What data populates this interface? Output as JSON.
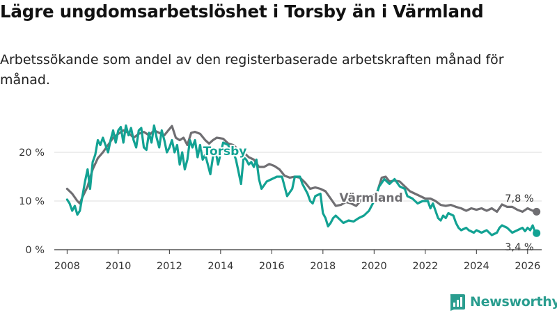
{
  "header": {
    "title": "Lägre ungdomsarbetslöshet i Torsby än i Värmland",
    "subtitle": "Arbetssökande som andel av den registerbaserade arbetskraften månad för månad."
  },
  "brand": {
    "name": "Newsworthy",
    "icon": "newsworthy-logo-icon",
    "color": "#2a9d8f"
  },
  "colors": {
    "torsby": "#12a293",
    "varmland": "#6f6e72",
    "grid": "#dcdcdc",
    "baseline": "#333333"
  },
  "chart_data": {
    "type": "line",
    "title": "Lägre ungdomsarbetslöshet i Torsby än i Värmland",
    "xlabel": "",
    "ylabel": "",
    "xlim": [
      2007.5,
      2026.55
    ],
    "ylim": [
      0,
      27
    ],
    "y_ticks": [
      {
        "value": 0,
        "label": "0 %"
      },
      {
        "value": 10,
        "label": "10 %"
      },
      {
        "value": 20,
        "label": "20 %"
      }
    ],
    "x_ticks": [
      {
        "value": 2008,
        "label": "2008"
      },
      {
        "value": 2010,
        "label": "2010"
      },
      {
        "value": 2012,
        "label": "2012"
      },
      {
        "value": 2014,
        "label": "2014"
      },
      {
        "value": 2016,
        "label": "2016"
      },
      {
        "value": 2018,
        "label": "2018"
      },
      {
        "value": 2020,
        "label": "2020"
      },
      {
        "value": 2022,
        "label": "2022"
      },
      {
        "value": 2024,
        "label": "2024"
      },
      {
        "value": 2026,
        "label": "2026"
      }
    ],
    "series": [
      {
        "name": "Värmland",
        "label": "Värmland",
        "end_label": "7,8 %",
        "color": "#6f6e72",
        "points": [
          [
            2008.0,
            12.5
          ],
          [
            2008.2,
            11.5
          ],
          [
            2008.4,
            10.0
          ],
          [
            2008.5,
            9.5
          ],
          [
            2008.6,
            10.8
          ],
          [
            2008.8,
            13.0
          ],
          [
            2009.0,
            16.5
          ],
          [
            2009.2,
            18.8
          ],
          [
            2009.4,
            20.0
          ],
          [
            2009.6,
            21.5
          ],
          [
            2009.8,
            23.0
          ],
          [
            2010.0,
            23.8
          ],
          [
            2010.2,
            24.5
          ],
          [
            2010.4,
            24.0
          ],
          [
            2010.6,
            23.0
          ],
          [
            2010.8,
            23.8
          ],
          [
            2011.0,
            24.2
          ],
          [
            2011.2,
            23.5
          ],
          [
            2011.4,
            24.5
          ],
          [
            2011.6,
            24.0
          ],
          [
            2011.8,
            23.5
          ],
          [
            2012.0,
            24.8
          ],
          [
            2012.1,
            25.4
          ],
          [
            2012.25,
            23.0
          ],
          [
            2012.4,
            22.5
          ],
          [
            2012.55,
            23.0
          ],
          [
            2012.7,
            21.5
          ],
          [
            2012.85,
            24.0
          ],
          [
            2013.0,
            24.2
          ],
          [
            2013.2,
            23.8
          ],
          [
            2013.4,
            22.5
          ],
          [
            2013.55,
            21.8
          ],
          [
            2013.7,
            22.5
          ],
          [
            2013.85,
            23.0
          ],
          [
            2014.1,
            22.8
          ],
          [
            2014.3,
            21.8
          ],
          [
            2014.5,
            21.5
          ],
          [
            2014.7,
            20.5
          ],
          [
            2014.9,
            20.0
          ],
          [
            2015.1,
            19.0
          ],
          [
            2015.3,
            18.5
          ],
          [
            2015.5,
            17.0
          ],
          [
            2015.7,
            17.0
          ],
          [
            2015.9,
            17.6
          ],
          [
            2016.1,
            17.2
          ],
          [
            2016.3,
            16.5
          ],
          [
            2016.5,
            15.2
          ],
          [
            2016.7,
            14.8
          ],
          [
            2016.9,
            15.0
          ],
          [
            2017.1,
            14.8
          ],
          [
            2017.3,
            13.8
          ],
          [
            2017.5,
            12.5
          ],
          [
            2017.7,
            12.8
          ],
          [
            2017.9,
            12.5
          ],
          [
            2018.1,
            12.0
          ],
          [
            2018.3,
            10.5
          ],
          [
            2018.5,
            9.0
          ],
          [
            2018.7,
            9.2
          ],
          [
            2018.9,
            9.8
          ],
          [
            2019.1,
            9.5
          ],
          [
            2019.3,
            9.0
          ],
          [
            2019.5,
            10.2
          ],
          [
            2019.7,
            10.8
          ],
          [
            2019.9,
            11.0
          ],
          [
            2020.1,
            11.5
          ],
          [
            2020.3,
            14.8
          ],
          [
            2020.45,
            15.0
          ],
          [
            2020.6,
            14.0
          ],
          [
            2020.8,
            14.2
          ],
          [
            2021.0,
            14.0
          ],
          [
            2021.2,
            13.0
          ],
          [
            2021.4,
            12.0
          ],
          [
            2021.6,
            11.5
          ],
          [
            2021.8,
            11.0
          ],
          [
            2022.0,
            10.5
          ],
          [
            2022.2,
            10.5
          ],
          [
            2022.4,
            10.0
          ],
          [
            2022.6,
            9.2
          ],
          [
            2022.8,
            9.0
          ],
          [
            2023.0,
            9.2
          ],
          [
            2023.2,
            8.8
          ],
          [
            2023.4,
            8.5
          ],
          [
            2023.6,
            8.0
          ],
          [
            2023.8,
            8.5
          ],
          [
            2024.0,
            8.2
          ],
          [
            2024.2,
            8.5
          ],
          [
            2024.4,
            8.0
          ],
          [
            2024.6,
            8.5
          ],
          [
            2024.8,
            7.8
          ],
          [
            2025.0,
            9.3
          ],
          [
            2025.2,
            8.8
          ],
          [
            2025.4,
            8.8
          ],
          [
            2025.6,
            8.2
          ],
          [
            2025.8,
            7.8
          ],
          [
            2026.0,
            8.5
          ],
          [
            2026.2,
            8.0
          ],
          [
            2026.35,
            7.8
          ]
        ]
      },
      {
        "name": "Torsby",
        "label": "Torsby",
        "end_label": "3,4 %",
        "color": "#12a293",
        "points": [
          [
            2008.0,
            10.3
          ],
          [
            2008.1,
            9.5
          ],
          [
            2008.2,
            8.0
          ],
          [
            2008.3,
            9.0
          ],
          [
            2008.4,
            7.2
          ],
          [
            2008.5,
            8.0
          ],
          [
            2008.6,
            11.0
          ],
          [
            2008.7,
            14.0
          ],
          [
            2008.8,
            16.5
          ],
          [
            2008.9,
            12.5
          ],
          [
            2009.0,
            18.0
          ],
          [
            2009.1,
            19.5
          ],
          [
            2009.2,
            22.5
          ],
          [
            2009.3,
            21.5
          ],
          [
            2009.4,
            23.0
          ],
          [
            2009.5,
            21.5
          ],
          [
            2009.6,
            20.0
          ],
          [
            2009.7,
            22.5
          ],
          [
            2009.8,
            24.5
          ],
          [
            2009.9,
            22.0
          ],
          [
            2010.0,
            24.5
          ],
          [
            2010.1,
            25.2
          ],
          [
            2010.2,
            22.0
          ],
          [
            2010.3,
            25.5
          ],
          [
            2010.4,
            23.5
          ],
          [
            2010.5,
            25.0
          ],
          [
            2010.6,
            22.5
          ],
          [
            2010.7,
            21.0
          ],
          [
            2010.8,
            24.5
          ],
          [
            2010.9,
            25.0
          ],
          [
            2011.0,
            21.0
          ],
          [
            2011.1,
            20.5
          ],
          [
            2011.2,
            24.0
          ],
          [
            2011.3,
            22.0
          ],
          [
            2011.4,
            25.5
          ],
          [
            2011.5,
            23.0
          ],
          [
            2011.6,
            21.0
          ],
          [
            2011.7,
            24.5
          ],
          [
            2011.8,
            22.5
          ],
          [
            2011.9,
            20.0
          ],
          [
            2012.0,
            21.0
          ],
          [
            2012.1,
            22.5
          ],
          [
            2012.2,
            20.0
          ],
          [
            2012.3,
            21.5
          ],
          [
            2012.4,
            17.5
          ],
          [
            2012.5,
            20.0
          ],
          [
            2012.6,
            16.5
          ],
          [
            2012.7,
            18.5
          ],
          [
            2012.8,
            22.5
          ],
          [
            2012.9,
            21.0
          ],
          [
            2013.0,
            22.5
          ],
          [
            2013.1,
            19.0
          ],
          [
            2013.2,
            21.5
          ],
          [
            2013.3,
            18.5
          ],
          [
            2013.4,
            19.5
          ],
          [
            2013.5,
            17.5
          ],
          [
            2013.6,
            15.5
          ],
          [
            2013.7,
            19.0
          ],
          [
            2013.8,
            20.5
          ],
          [
            2013.9,
            17.5
          ],
          [
            2014.1,
            22.0
          ],
          [
            2014.3,
            21.5
          ],
          [
            2014.4,
            19.5
          ],
          [
            2014.5,
            20.0
          ],
          [
            2014.6,
            18.5
          ],
          [
            2014.7,
            16.0
          ],
          [
            2014.8,
            13.5
          ],
          [
            2014.9,
            19.0
          ],
          [
            2015.0,
            18.5
          ],
          [
            2015.1,
            17.5
          ],
          [
            2015.2,
            18.0
          ],
          [
            2015.3,
            17.0
          ],
          [
            2015.4,
            18.5
          ],
          [
            2015.5,
            14.5
          ],
          [
            2015.6,
            12.5
          ],
          [
            2015.8,
            14.0
          ],
          [
            2016.0,
            14.5
          ],
          [
            2016.2,
            15.0
          ],
          [
            2016.4,
            15.0
          ],
          [
            2016.5,
            13.0
          ],
          [
            2016.6,
            11.0
          ],
          [
            2016.8,
            12.5
          ],
          [
            2016.9,
            15.0
          ],
          [
            2017.1,
            15.0
          ],
          [
            2017.2,
            13.5
          ],
          [
            2017.4,
            11.5
          ],
          [
            2017.5,
            10.0
          ],
          [
            2017.6,
            9.5
          ],
          [
            2017.7,
            11.0
          ],
          [
            2017.9,
            11.5
          ],
          [
            2018.0,
            7.5
          ],
          [
            2018.1,
            6.5
          ],
          [
            2018.2,
            4.8
          ],
          [
            2018.3,
            5.5
          ],
          [
            2018.4,
            6.5
          ],
          [
            2018.5,
            7.0
          ],
          [
            2018.6,
            6.5
          ],
          [
            2018.8,
            5.5
          ],
          [
            2019.0,
            6.0
          ],
          [
            2019.2,
            5.8
          ],
          [
            2019.4,
            6.5
          ],
          [
            2019.6,
            7.0
          ],
          [
            2019.8,
            8.0
          ],
          [
            2020.0,
            10.0
          ],
          [
            2020.2,
            13.0
          ],
          [
            2020.4,
            14.5
          ],
          [
            2020.6,
            13.5
          ],
          [
            2020.8,
            14.5
          ],
          [
            2021.0,
            13.0
          ],
          [
            2021.2,
            12.5
          ],
          [
            2021.3,
            11.0
          ],
          [
            2021.5,
            10.5
          ],
          [
            2021.7,
            9.5
          ],
          [
            2021.9,
            10.0
          ],
          [
            2022.1,
            10.0
          ],
          [
            2022.2,
            8.5
          ],
          [
            2022.3,
            9.5
          ],
          [
            2022.4,
            8.0
          ],
          [
            2022.5,
            6.5
          ],
          [
            2022.6,
            6.0
          ],
          [
            2022.7,
            7.0
          ],
          [
            2022.8,
            6.5
          ],
          [
            2022.9,
            7.5
          ],
          [
            2023.1,
            7.0
          ],
          [
            2023.2,
            5.5
          ],
          [
            2023.3,
            4.5
          ],
          [
            2023.4,
            4.0
          ],
          [
            2023.6,
            4.5
          ],
          [
            2023.7,
            4.0
          ],
          [
            2023.9,
            3.5
          ],
          [
            2024.0,
            4.0
          ],
          [
            2024.2,
            3.5
          ],
          [
            2024.4,
            4.0
          ],
          [
            2024.6,
            3.0
          ],
          [
            2024.8,
            3.5
          ],
          [
            2024.9,
            4.5
          ],
          [
            2025.0,
            5.0
          ],
          [
            2025.2,
            4.5
          ],
          [
            2025.4,
            3.5
          ],
          [
            2025.6,
            4.0
          ],
          [
            2025.8,
            4.5
          ],
          [
            2025.9,
            3.8
          ],
          [
            2026.0,
            4.5
          ],
          [
            2026.1,
            4.0
          ],
          [
            2026.2,
            5.0
          ],
          [
            2026.3,
            3.5
          ],
          [
            2026.35,
            3.4
          ]
        ]
      }
    ]
  }
}
